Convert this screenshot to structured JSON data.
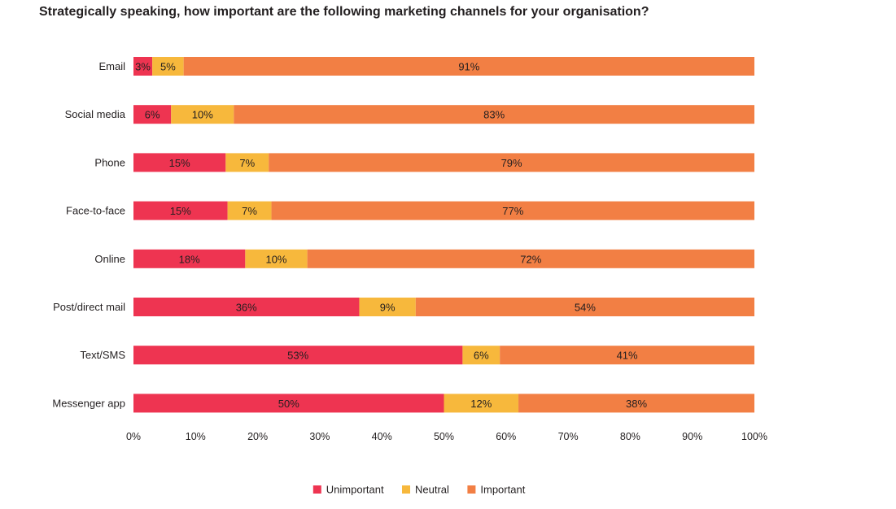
{
  "chart_data": {
    "type": "bar",
    "orientation": "horizontal",
    "stacked": true,
    "title": "Strategically speaking, how important are the following marketing channels for your organisation?",
    "categories": [
      "Email",
      "Social media",
      "Phone",
      "Face-to-face",
      "Online",
      "Post/direct mail",
      "Text/SMS",
      "Messenger app"
    ],
    "series": [
      {
        "name": "Unimportant",
        "color": "#ee3451",
        "values": [
          3,
          6,
          15,
          15,
          18,
          36,
          53,
          50
        ]
      },
      {
        "name": "Neutral",
        "color": "#f7b83c",
        "values": [
          5,
          10,
          7,
          7,
          10,
          9,
          6,
          12
        ]
      },
      {
        "name": "Important",
        "color": "#f27f44",
        "values": [
          91,
          83,
          79,
          77,
          72,
          54,
          41,
          38
        ]
      }
    ],
    "xlim": [
      0,
      100
    ],
    "x_ticks": [
      "0%",
      "10%",
      "20%",
      "30%",
      "40%",
      "50%",
      "60%",
      "70%",
      "80%",
      "90%",
      "100%"
    ],
    "grid": false,
    "legend_position": "bottom-center"
  }
}
